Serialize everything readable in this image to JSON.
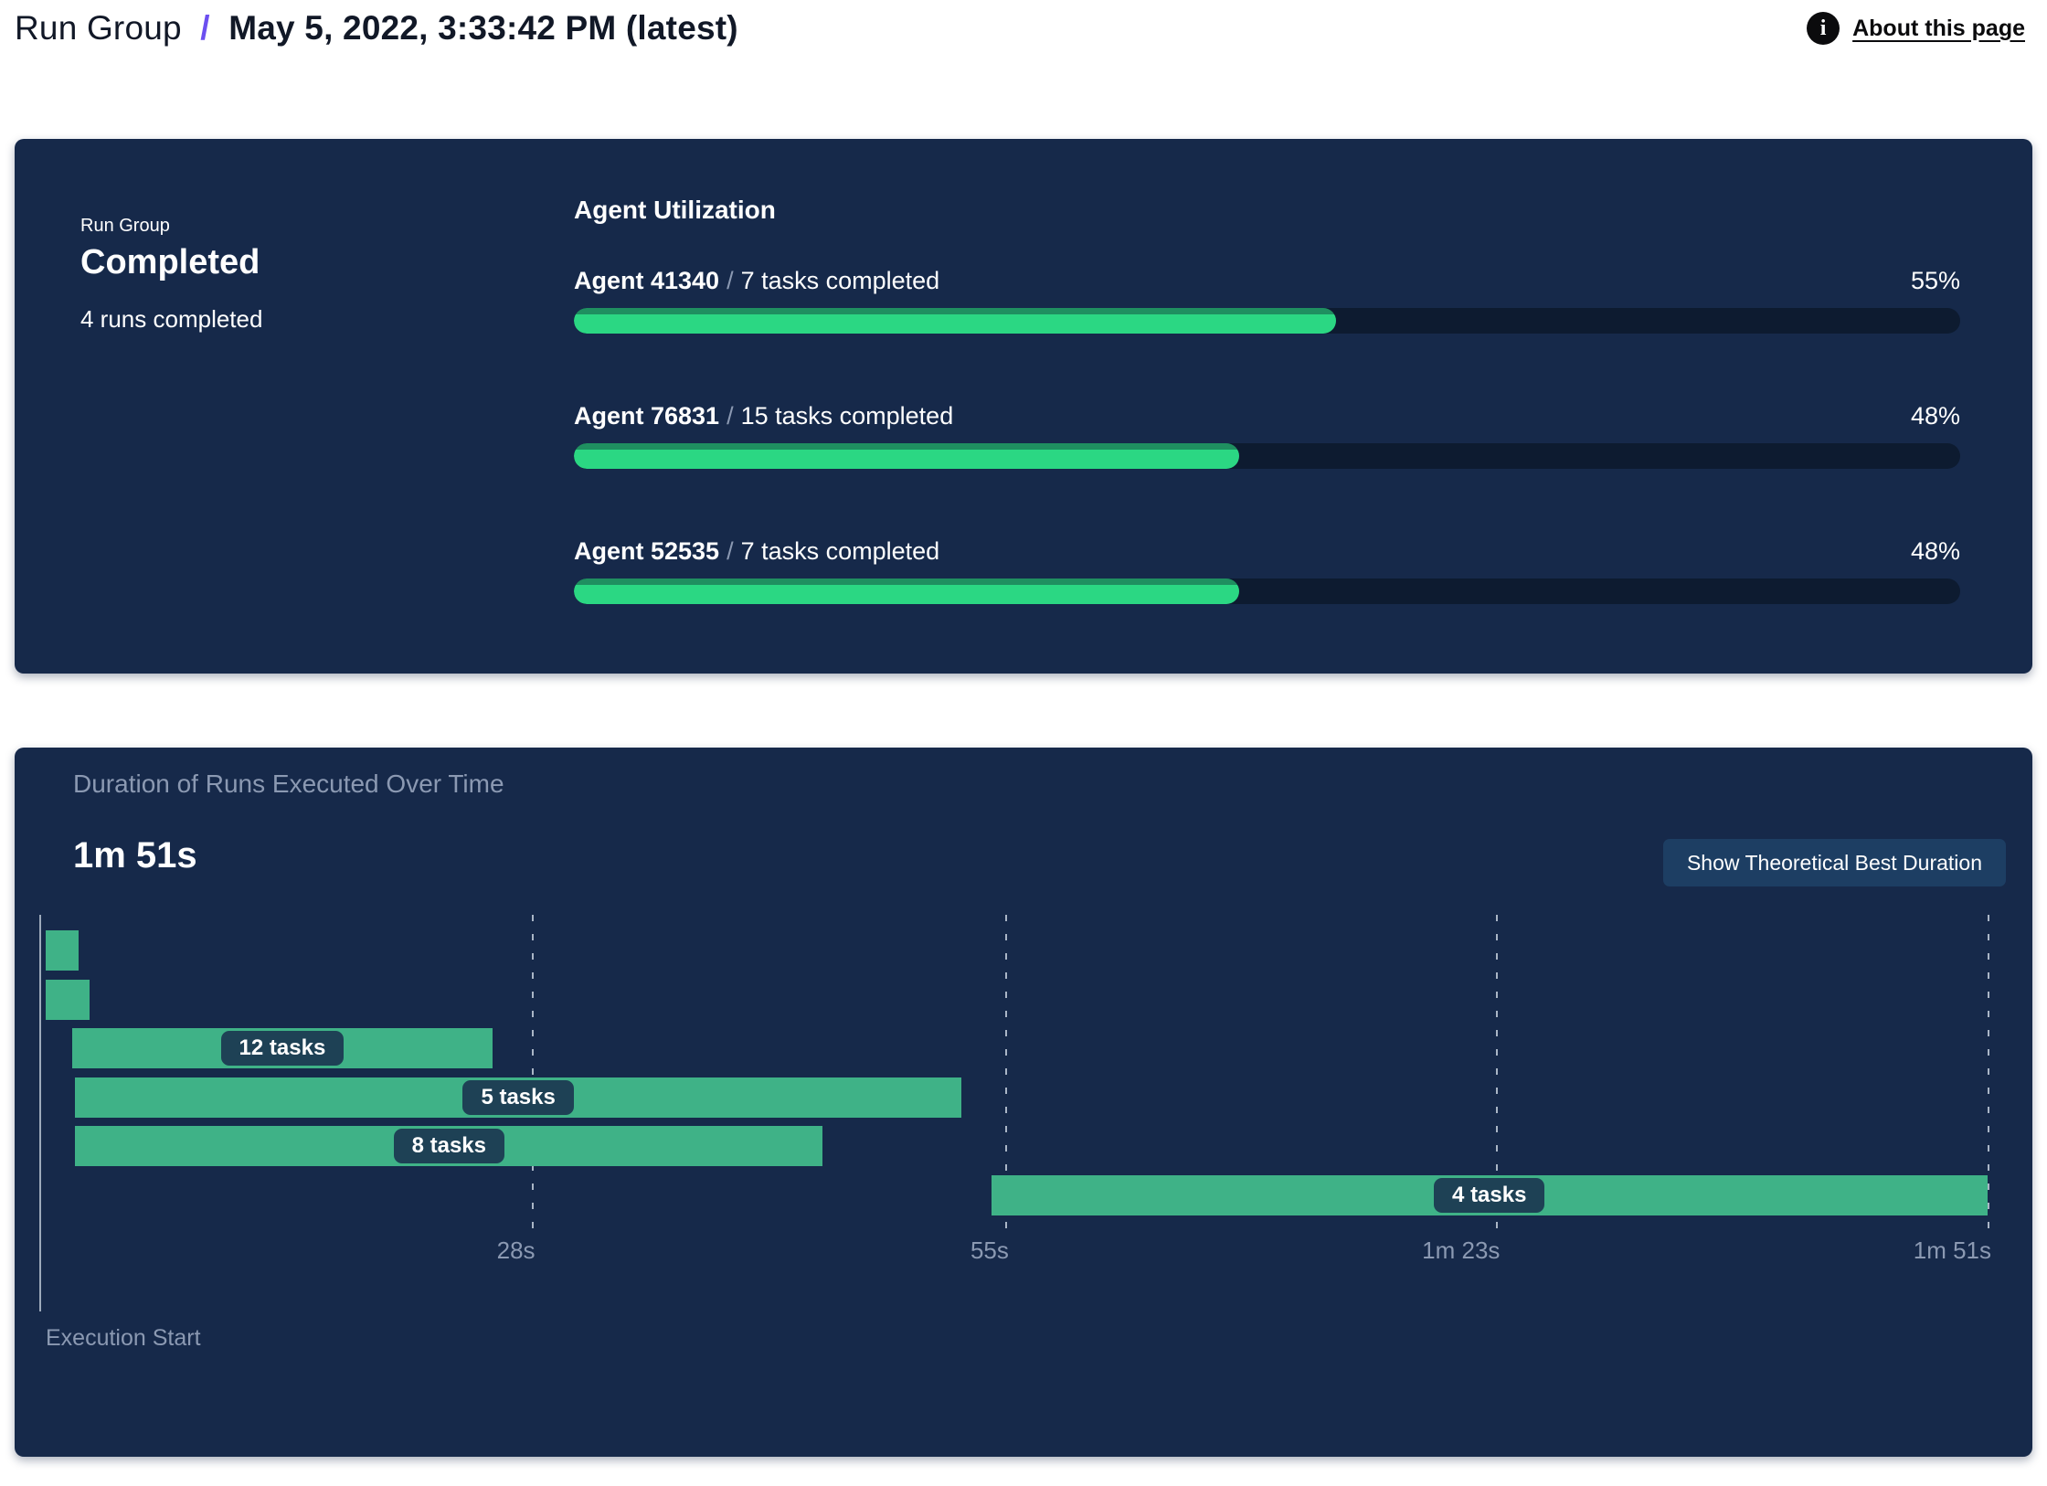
{
  "header": {
    "breadcrumb_root": "Run Group",
    "breadcrumb_separator": "/",
    "title": "May 5, 2022, 3:33:42 PM (latest)",
    "about_link": "About this page",
    "info_icon_glyph": "i"
  },
  "status_card": {
    "label": "Run Group",
    "status": "Completed",
    "subtext": "4 runs completed"
  },
  "agent_utilization": {
    "title": "Agent Utilization",
    "separator": "/",
    "agents": [
      {
        "name": "Agent 41340",
        "tasks": "7 tasks completed",
        "percent": 55,
        "percent_label": "55%"
      },
      {
        "name": "Agent 76831",
        "tasks": "15 tasks completed",
        "percent": 48,
        "percent_label": "48%"
      },
      {
        "name": "Agent 52535",
        "tasks": "7 tasks completed",
        "percent": 48,
        "percent_label": "48%"
      }
    ]
  },
  "duration_panel": {
    "title": "Duration of Runs Executed Over Time",
    "total_duration": "1m 51s",
    "button_label": "Show Theoretical Best Duration",
    "execution_start_label": "Execution Start"
  },
  "colors": {
    "panel_bg": "#16294A",
    "progress_track": "#0D1B30",
    "progress_fill": "#2BD783",
    "progress_fill_top": "#1F8F60",
    "gantt_bar": "#3FB287",
    "bar_pill_bg": "#1E4155",
    "button_bg": "#1D3E63",
    "muted_text": "#8B99B2",
    "accent_purple": "#6C4FF0"
  },
  "chart_data": {
    "type": "gantt",
    "title": "Duration of Runs Executed Over Time",
    "xlabel_origin": "Execution Start",
    "total_seconds": 111,
    "x_ticks": [
      {
        "seconds": 28,
        "label": "28s"
      },
      {
        "seconds": 55,
        "label": "55s"
      },
      {
        "seconds": 83,
        "label": "1m 23s"
      },
      {
        "seconds": 111,
        "label": "1m 51s"
      }
    ],
    "bars": [
      {
        "row": 0,
        "start_s": 0.3,
        "end_s": 2.2,
        "label": ""
      },
      {
        "row": 1,
        "start_s": 0.3,
        "end_s": 2.8,
        "label": ""
      },
      {
        "row": 2,
        "start_s": 1.8,
        "end_s": 25.8,
        "label": "12 tasks"
      },
      {
        "row": 3,
        "start_s": 2.0,
        "end_s": 52.5,
        "label": "5 tasks"
      },
      {
        "row": 4,
        "start_s": 2.0,
        "end_s": 44.6,
        "label": "8 tasks"
      },
      {
        "row": 5,
        "start_s": 54.2,
        "end_s": 111.0,
        "label": "4 tasks"
      }
    ]
  }
}
